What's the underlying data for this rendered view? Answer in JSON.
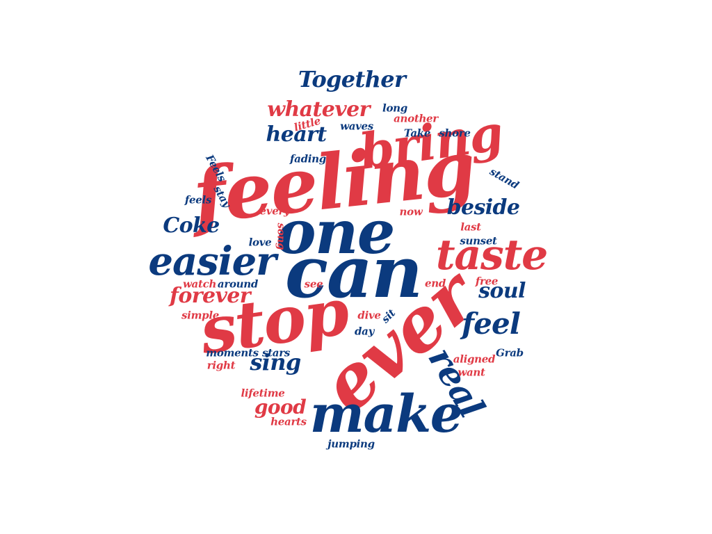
{
  "colors": {
    "red": "#e03a45",
    "blue": "#0b3a7e"
  },
  "words": [
    {
      "text": "feeling",
      "color": "red"
    },
    {
      "text": "one",
      "color": "blue"
    },
    {
      "text": "can",
      "color": "blue"
    },
    {
      "text": "stop",
      "color": "red"
    },
    {
      "text": "ever",
      "color": "red"
    },
    {
      "text": "make",
      "color": "blue"
    },
    {
      "text": "bring",
      "color": "red"
    },
    {
      "text": "taste",
      "color": "red"
    },
    {
      "text": "easier",
      "color": "blue"
    },
    {
      "text": "real",
      "color": "blue"
    },
    {
      "text": "Together",
      "color": "blue"
    },
    {
      "text": "whatever",
      "color": "red"
    },
    {
      "text": "heart",
      "color": "blue"
    },
    {
      "text": "feel",
      "color": "blue"
    },
    {
      "text": "sing",
      "color": "blue"
    },
    {
      "text": "beside",
      "color": "blue"
    },
    {
      "text": "Coke",
      "color": "blue"
    },
    {
      "text": "forever",
      "color": "red"
    },
    {
      "text": "soul",
      "color": "blue"
    },
    {
      "text": "good",
      "color": "red"
    },
    {
      "text": "long",
      "color": "blue"
    },
    {
      "text": "little",
      "color": "red"
    },
    {
      "text": "waves",
      "color": "blue"
    },
    {
      "text": "another",
      "color": "red"
    },
    {
      "text": "Take",
      "color": "blue"
    },
    {
      "text": "shore",
      "color": "blue"
    },
    {
      "text": "fading",
      "color": "blue"
    },
    {
      "text": "Feels",
      "color": "blue"
    },
    {
      "text": "stay",
      "color": "blue"
    },
    {
      "text": "feels",
      "color": "blue"
    },
    {
      "text": "stand",
      "color": "blue"
    },
    {
      "text": "every",
      "color": "red"
    },
    {
      "text": "now",
      "color": "red"
    },
    {
      "text": "song",
      "color": "red"
    },
    {
      "text": "last",
      "color": "red"
    },
    {
      "text": "love",
      "color": "blue"
    },
    {
      "text": "sunset",
      "color": "blue"
    },
    {
      "text": "watch",
      "color": "red"
    },
    {
      "text": "around",
      "color": "blue"
    },
    {
      "text": "see",
      "color": "red"
    },
    {
      "text": "end",
      "color": "red"
    },
    {
      "text": "free",
      "color": "red"
    },
    {
      "text": "simple",
      "color": "red"
    },
    {
      "text": "dive",
      "color": "red"
    },
    {
      "text": "sit",
      "color": "blue"
    },
    {
      "text": "day",
      "color": "blue"
    },
    {
      "text": "moments",
      "color": "blue"
    },
    {
      "text": "stars",
      "color": "blue"
    },
    {
      "text": "right",
      "color": "red"
    },
    {
      "text": "aligned",
      "color": "red"
    },
    {
      "text": "Grab",
      "color": "blue"
    },
    {
      "text": "want",
      "color": "red"
    },
    {
      "text": "lifetime",
      "color": "red"
    },
    {
      "text": "hearts",
      "color": "red"
    },
    {
      "text": "jumping",
      "color": "blue"
    }
  ]
}
